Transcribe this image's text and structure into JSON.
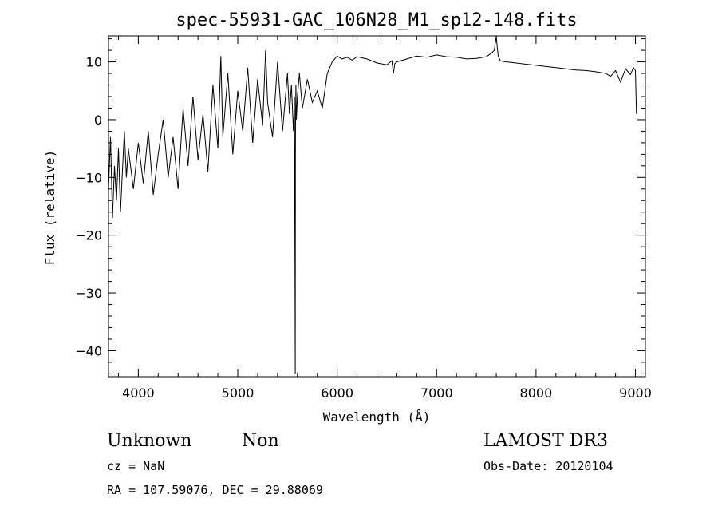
{
  "chart_data": {
    "type": "line",
    "title": "spec-55931-GAC_106N28_M1_sp12-148.fits",
    "xlabel": "Wavelength (Å)",
    "ylabel": "Flux (relative)",
    "xlim": [
      3700,
      9100
    ],
    "ylim": [
      -44.5,
      14.5
    ],
    "xticks": [
      4000,
      5000,
      6000,
      7000,
      8000,
      9000
    ],
    "yticks": [
      -40,
      -30,
      -20,
      -10,
      0,
      10
    ],
    "xtick_labels": [
      "4000",
      "5000",
      "6000",
      "7000",
      "8000",
      "9000"
    ],
    "ytick_labels": [
      "−40",
      "−30",
      "−20",
      "−10",
      "0",
      "10"
    ],
    "grid": false,
    "legend": "none",
    "line_color": "#000000",
    "series": [
      {
        "x": [
          3700,
          3720,
          3740,
          3760,
          3780,
          3800,
          3820,
          3840,
          3860,
          3880,
          3900,
          3950,
          4000,
          4050,
          4100,
          4150,
          4200,
          4250,
          4300,
          4350,
          4400,
          4450,
          4500,
          4550,
          4600,
          4650,
          4700,
          4750,
          4800,
          4830,
          4850,
          4900,
          4950,
          5000,
          5050,
          5100,
          5150,
          5200,
          5250,
          5280,
          5300,
          5350,
          5400,
          5450,
          5500,
          5520,
          5540,
          5560,
          5570,
          5578,
          5580,
          5582,
          5585,
          5590,
          5600,
          5620,
          5650,
          5700,
          5750,
          5800,
          5850,
          5900,
          5950,
          6000,
          6050,
          6100,
          6150,
          6200,
          6300,
          6400,
          6500,
          6550,
          6565,
          6580,
          6600,
          6700,
          6800,
          6900,
          7000,
          7100,
          7200,
          7300,
          7400,
          7500,
          7550,
          7580,
          7600,
          7610,
          7620,
          7640,
          7660,
          7700,
          7800,
          7900,
          8000,
          8100,
          8200,
          8300,
          8400,
          8500,
          8600,
          8700,
          8750,
          8800,
          8850,
          8900,
          8950,
          8980,
          9000,
          9010
        ],
        "y": [
          -12,
          -3,
          -17,
          -8,
          -14,
          -5,
          -16,
          -9,
          -2,
          -10,
          -5,
          -12,
          -4,
          -11,
          -2,
          -13,
          -6,
          0,
          -10,
          -3,
          -12,
          2,
          -8,
          4,
          -7,
          1,
          -9,
          6,
          -5,
          11,
          -3,
          8,
          -6,
          5,
          -2,
          9,
          -4,
          7,
          -1,
          12,
          3,
          -3,
          10,
          -2,
          8,
          1,
          6,
          -2,
          4,
          -44,
          -5,
          2,
          6,
          0,
          4,
          8,
          2,
          7,
          3,
          5,
          2,
          8,
          10,
          11,
          10.5,
          10.8,
          10.3,
          10.9,
          10.5,
          9.8,
          9.5,
          10.2,
          8,
          9.7,
          10,
          10.5,
          11,
          10.8,
          11.2,
          10.9,
          10.8,
          10.5,
          10.6,
          10.9,
          11.5,
          12,
          14.5,
          12.5,
          11,
          10.2,
          10.1,
          10,
          9.8,
          9.6,
          9.4,
          9.2,
          9.0,
          8.8,
          8.6,
          8.5,
          8.3,
          8.0,
          7.5,
          8.5,
          6.5,
          8.8,
          7.8,
          9,
          8.5,
          1
        ]
      }
    ],
    "annotations": [
      "Unknown",
      "Non",
      "LAMOST DR3",
      "cz = NaN",
      "Obs-Date: 20120104",
      "RA = 107.59076, DEC =  29.88069"
    ]
  }
}
